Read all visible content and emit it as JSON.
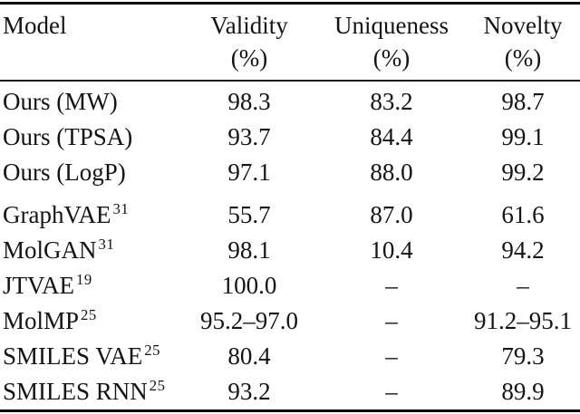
{
  "page": {
    "background": "#fefefe",
    "text_color": "#141414",
    "rule_color": "#0c0c0c"
  },
  "table": {
    "header": {
      "model_label": "Model",
      "columns": [
        {
          "label": "Validity",
          "unit": "(%)"
        },
        {
          "label": "Uniqueness",
          "unit": "(%)"
        },
        {
          "label": "Novelty",
          "unit": "(%)"
        }
      ]
    },
    "groups": [
      {
        "name": "ours",
        "rows": [
          {
            "model": "Ours (MW)",
            "sup": "",
            "validity": "98.3",
            "uniqueness": "83.2",
            "novelty": "98.7"
          },
          {
            "model": "Ours (TPSA)",
            "sup": "",
            "validity": "93.7",
            "uniqueness": "84.4",
            "novelty": "99.1"
          },
          {
            "model": "Ours (LogP)",
            "sup": "",
            "validity": "97.1",
            "uniqueness": "88.0",
            "novelty": "99.2"
          }
        ]
      },
      {
        "name": "baselines",
        "rows": [
          {
            "model": "GraphVAE",
            "sup": "31",
            "validity": "55.7",
            "uniqueness": "87.0",
            "novelty": "61.6"
          },
          {
            "model": "MolGAN",
            "sup": "31",
            "validity": "98.1",
            "uniqueness": "10.4",
            "novelty": "94.2"
          },
          {
            "model": "JTVAE",
            "sup": "19",
            "validity": "100.0",
            "uniqueness": "–",
            "novelty": "–"
          },
          {
            "model": "MolMP",
            "sup": "25",
            "validity": "95.2–97.0",
            "uniqueness": "–",
            "novelty": "91.2–95.1"
          },
          {
            "model": "SMILES VAE",
            "sup": "25",
            "validity": "80.4",
            "uniqueness": "–",
            "novelty": "79.3"
          },
          {
            "model": "SMILES RNN",
            "sup": "25",
            "validity": "93.2",
            "uniqueness": "–",
            "novelty": "89.9"
          }
        ]
      }
    ]
  }
}
